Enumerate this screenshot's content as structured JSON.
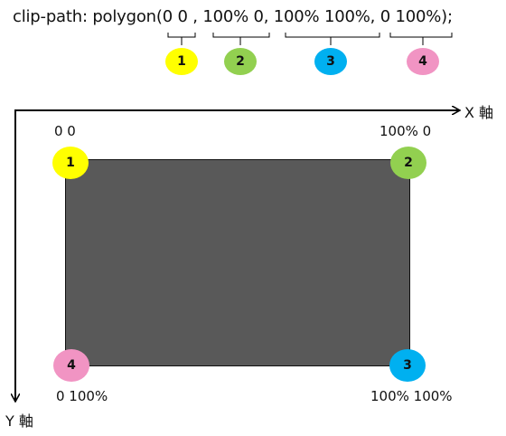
{
  "code": {
    "prefix": "clip-path: polygon(",
    "p1": "0 0",
    "sep1": " , ",
    "p2": "100% 0",
    "sep2": ", ",
    "p3": "100% 100%",
    "sep3": ", ",
    "p4": "0 100%",
    "suffix": ");"
  },
  "axes": {
    "x_label": "X 軸",
    "y_label": "Y 軸"
  },
  "points": [
    {
      "num": "1",
      "coord": "0 0",
      "color": "#ffff00"
    },
    {
      "num": "2",
      "coord": "100% 0",
      "color": "#92d050"
    },
    {
      "num": "3",
      "coord": "100% 100%",
      "color": "#00b0f0"
    },
    {
      "num": "4",
      "coord": "0 100%",
      "color": "#f194c3"
    }
  ],
  "colors": {
    "shape_fill": "#595959",
    "axis": "#000000"
  }
}
